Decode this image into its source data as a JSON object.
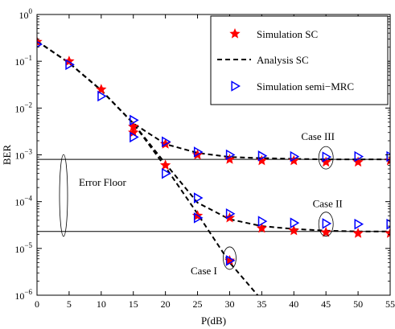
{
  "chart_data": {
    "type": "line",
    "xlabel": "P(dB)",
    "ylabel": "BER",
    "xlim": [
      0,
      55
    ],
    "ylim": [
      1e-06,
      1
    ],
    "yscale": "log",
    "xticks": [
      "0",
      "5",
      "10",
      "15",
      "20",
      "25",
      "30",
      "35",
      "40",
      "45",
      "50",
      "55"
    ],
    "yticks": [
      {
        "base": "10",
        "exp": "0"
      },
      {
        "base": "10",
        "exp": "−1"
      },
      {
        "base": "10",
        "exp": "−2"
      },
      {
        "base": "10",
        "exp": "−3"
      },
      {
        "base": "10",
        "exp": "−4"
      },
      {
        "base": "10",
        "exp": "−5"
      },
      {
        "base": "10",
        "exp": "−6"
      }
    ],
    "legend": {
      "position": "top-right",
      "entries": [
        "Simulation SC",
        "Analysis SC",
        "Simulation semi−MRC"
      ]
    },
    "series": [
      {
        "name": "Analysis SC",
        "style": "dashed",
        "color": "#000000",
        "x": [
          0,
          5,
          10,
          15,
          20,
          25,
          30,
          35,
          40,
          45,
          50,
          55
        ],
        "y": [
          0.27,
          0.092,
          0.024,
          0.0047,
          0.0017,
          0.0011,
          0.0009,
          0.00085,
          0.00082,
          0.0008,
          0.0008,
          0.0008
        ]
      },
      {
        "name": "Analysis SC",
        "style": "dashed",
        "color": "#000000",
        "x": [
          0,
          5,
          10,
          15,
          20,
          25,
          30,
          35,
          40,
          45,
          50,
          55
        ],
        "y": [
          0.27,
          0.092,
          0.024,
          0.0047,
          0.00065,
          9.5e-05,
          4.2e-05,
          3e-05,
          2.6e-05,
          2.4e-05,
          2.3e-05,
          2.3e-05
        ]
      },
      {
        "name": "Analysis SC",
        "style": "dashed",
        "color": "#000000",
        "x": [
          0,
          5,
          10,
          15,
          20,
          25,
          30,
          34.5
        ],
        "y": [
          0.27,
          0.092,
          0.024,
          0.0047,
          0.00055,
          5.5e-05,
          5e-06,
          9.5e-07
        ]
      },
      {
        "name": "Simulation SC",
        "marker": "star",
        "color": "#ff0000",
        "x": [
          0,
          5,
          10,
          15,
          20,
          25,
          30,
          35,
          40,
          45,
          50,
          55
        ],
        "y": [
          0.26,
          0.1,
          0.025,
          0.004,
          0.0017,
          0.001,
          0.0008,
          0.00075,
          0.00075,
          0.0007,
          0.0007,
          0.00075
        ]
      },
      {
        "name": "Simulation SC",
        "marker": "star",
        "color": "#ff0000",
        "x": [
          15,
          20,
          25,
          30,
          35,
          40,
          45,
          50,
          55
        ],
        "y": [
          0.003,
          0.0006,
          5e-05,
          4.5e-05,
          2.7e-05,
          2.4e-05,
          2.2e-05,
          2.1e-05,
          2.1e-05
        ]
      },
      {
        "name": "Simulation SC",
        "marker": "star",
        "color": "#ff0000",
        "x": [
          30
        ],
        "y": [
          5.5e-06
        ]
      },
      {
        "name": "Simulation semi−MRC",
        "marker": "triangle-right",
        "color": "#0000ff",
        "x": [
          0,
          5,
          10,
          15,
          20,
          25,
          30,
          35,
          40,
          45,
          50,
          55
        ],
        "y": [
          0.23,
          0.085,
          0.018,
          0.0055,
          0.0019,
          0.00115,
          0.001,
          0.00095,
          0.00092,
          0.0009,
          0.00092,
          0.00092
        ]
      },
      {
        "name": "Simulation semi−MRC",
        "marker": "triangle-right",
        "color": "#0000ff",
        "x": [
          15,
          20,
          25,
          30,
          35,
          40,
          45,
          50,
          55
        ],
        "y": [
          0.0024,
          0.0004,
          0.00012,
          5.5e-05,
          3.8e-05,
          3.5e-05,
          3.4e-05,
          3.3e-05,
          3.3e-05
        ]
      },
      {
        "name": "Simulation semi−MRC",
        "marker": "triangle-right",
        "color": "#0000ff",
        "x": [
          25,
          30
        ],
        "y": [
          4.5e-05,
          5.5e-06
        ]
      }
    ],
    "reference_lines": [
      {
        "orientation": "horizontal",
        "y": 0.0008
      },
      {
        "orientation": "horizontal",
        "y": 2.3e-05
      }
    ],
    "annotations": [
      {
        "text": "Case III",
        "x": 45,
        "y": 0.0008
      },
      {
        "text": "Case II",
        "x": 45,
        "y": 3.3e-05
      },
      {
        "text": "Case I",
        "x": 30,
        "y": 5.5e-06
      },
      {
        "text": "Error Floor",
        "x": 4,
        "y": 0.00014
      }
    ]
  }
}
